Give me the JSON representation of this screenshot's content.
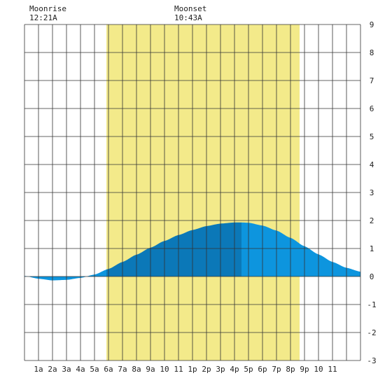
{
  "chart_data": {
    "type": "area",
    "title": "",
    "xlabel": "",
    "ylabel": "",
    "x_ticks": [
      "1a",
      "2a",
      "3a",
      "4a",
      "5a",
      "6a",
      "7a",
      "8a",
      "9a",
      "10",
      "11",
      "1p",
      "2p",
      "3p",
      "4p",
      "5p",
      "6p",
      "7p",
      "8p",
      "9p",
      "10",
      "11"
    ],
    "y_ticks": [
      9,
      8,
      7,
      6,
      5,
      4,
      3,
      2,
      1,
      0,
      -1,
      -2,
      -3
    ],
    "xlim_hours": [
      0,
      24
    ],
    "ylim": [
      -3,
      9
    ],
    "grid": true,
    "daylight_hours": [
      5.85,
      19.65
    ],
    "high_tide_hour": 15.5,
    "series": [
      {
        "x_hours": [
          0,
          1,
          2,
          3,
          4,
          5,
          6,
          7,
          8,
          9,
          10,
          11,
          12,
          13,
          14,
          15,
          15.5,
          16,
          17,
          18,
          19,
          20,
          21,
          22,
          23,
          24
        ],
        "values": [
          0.02,
          -0.08,
          -0.14,
          -0.12,
          -0.05,
          0.07,
          0.27,
          0.52,
          0.78,
          1.03,
          1.27,
          1.48,
          1.66,
          1.8,
          1.89,
          1.93,
          1.93,
          1.92,
          1.82,
          1.64,
          1.38,
          1.08,
          0.79,
          0.52,
          0.31,
          0.17
        ]
      }
    ],
    "colors": {
      "daylight": "#f3ea8a",
      "fill_night": "#0d95de",
      "fill_day_rising": "#0b78b8",
      "fill_day_falling": "#0d95de",
      "grid": "#333333"
    },
    "annotations": [
      {
        "label": "Moonrise",
        "time": "12:21A",
        "hour": 0.35
      },
      {
        "label": "Moonset",
        "time": "10:43A",
        "hour": 10.72
      }
    ]
  }
}
